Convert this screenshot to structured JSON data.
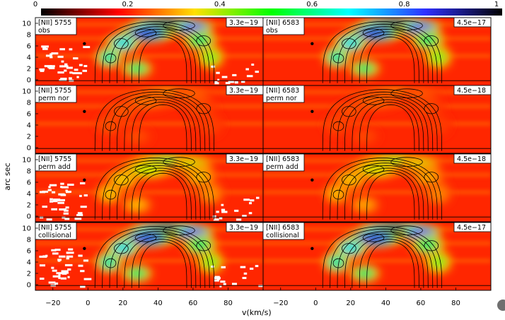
{
  "chart_data": {
    "type": "heatmap",
    "colorbar": {
      "ticks": [
        "0",
        "0.2",
        "0.4",
        "0.6",
        "0.8",
        "1"
      ],
      "values": [
        0,
        0.2,
        0.4,
        0.6,
        0.8,
        1
      ],
      "colors": [
        "#000000",
        "#ff0000",
        "#ffe000",
        "#00ff00",
        "#00ffff",
        "#3030ff",
        "#000000"
      ]
    },
    "xlabel": "v(km/s)",
    "ylabel": "arc sec",
    "xlim": [
      -30,
      100
    ],
    "ylim": [
      -1,
      11
    ],
    "xticks": {
      "left": [
        "−20",
        "0",
        "20",
        "40",
        "60",
        "80"
      ],
      "right": [
        "−20",
        "0",
        "20",
        "40",
        "60",
        "80"
      ],
      "values": [
        -20,
        0,
        20,
        40,
        60,
        80
      ]
    },
    "yticks": {
      "labels": [
        "0",
        "2",
        "4",
        "6",
        "8",
        "10"
      ],
      "values": [
        0,
        2,
        4,
        6,
        8,
        10
      ]
    },
    "panels": [
      {
        "line": "[NII] 5755",
        "model": "obs",
        "scale": "3.3e−19",
        "col": 0,
        "row": 0,
        "peak": 0.95,
        "noise": true
      },
      {
        "line": "[NII] 6583",
        "model": "obs",
        "scale": "4.5e−17",
        "col": 1,
        "row": 0,
        "peak": 0.95,
        "noise": false
      },
      {
        "line": "[NII] 5755",
        "model": "perm nor",
        "scale": "3.3e−19",
        "col": 0,
        "row": 1,
        "peak": 0.16,
        "noise": false
      },
      {
        "line": "[NII] 6583",
        "model": "perm nor",
        "scale": "4.5e−18",
        "col": 1,
        "row": 1,
        "peak": 0.14,
        "noise": false
      },
      {
        "line": "[NII] 5755",
        "model": "perm add",
        "scale": "3.3e−19",
        "col": 0,
        "row": 2,
        "peak": 0.42,
        "noise": true
      },
      {
        "line": "[NII] 6583",
        "model": "perm add",
        "scale": "4.5e−18",
        "col": 1,
        "row": 2,
        "peak": 0.38,
        "noise": false
      },
      {
        "line": "[NII] 5755",
        "model": "collisional",
        "scale": "3.3e−19",
        "col": 0,
        "row": 3,
        "peak": 0.95,
        "noise": true
      },
      {
        "line": "[NII] 6583",
        "model": "collisional",
        "scale": "4.5e−17",
        "col": 1,
        "row": 3,
        "peak": 0.95,
        "noise": false
      }
    ]
  }
}
